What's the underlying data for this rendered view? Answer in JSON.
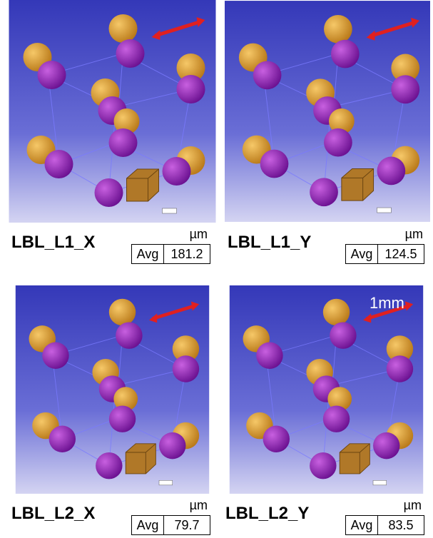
{
  "panels": [
    {
      "label": "LBL_L1_X",
      "unit": "µm",
      "stat": "Avg",
      "value": 181.2
    },
    {
      "label": "LBL_L1_Y",
      "unit": "µm",
      "stat": "Avg",
      "value": 124.5
    },
    {
      "label": "LBL_L2_X",
      "unit": "µm",
      "stat": "Avg",
      "value": 79.7
    },
    {
      "label": "LBL_L2_Y",
      "unit": "µm",
      "stat": "Avg",
      "value": 83.5,
      "scale_label": "1mm"
    }
  ]
}
